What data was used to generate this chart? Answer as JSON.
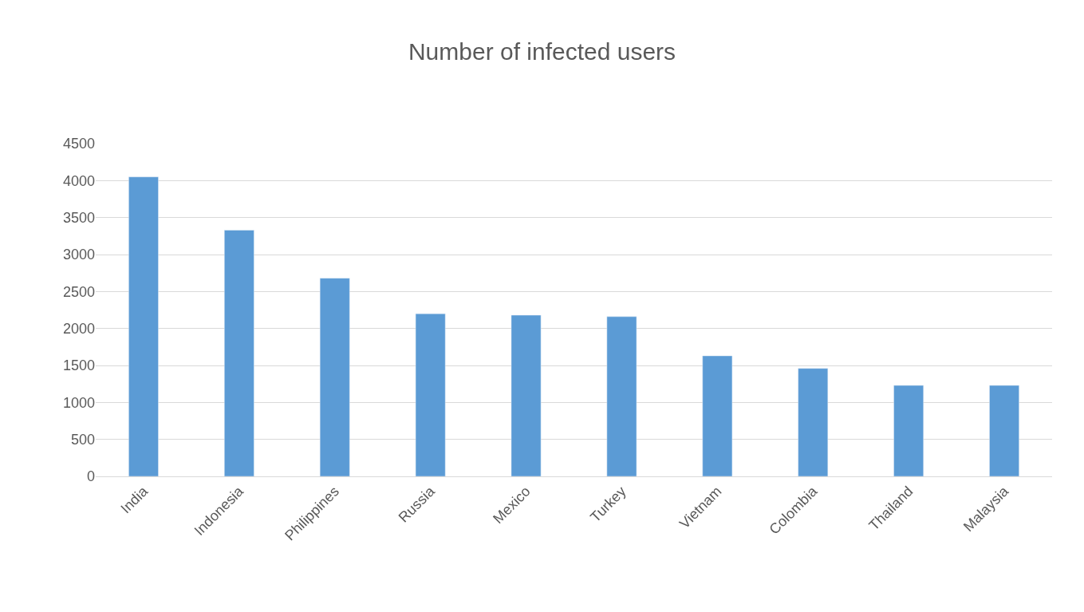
{
  "chart_data": {
    "type": "bar",
    "title": "Number of infected users",
    "categories": [
      "India",
      "Indonesia",
      "Philippines",
      "Russia",
      "Mexico",
      "Turkey",
      "Vietnam",
      "Colombia",
      "Thailand",
      "Malaysia"
    ],
    "values": [
      4050,
      3330,
      2680,
      2200,
      2180,
      2160,
      1630,
      1460,
      1230,
      1230
    ],
    "color": "#5b9bd5",
    "ylim": [
      0,
      4500
    ],
    "yticks": [
      0,
      500,
      1000,
      1500,
      2000,
      2500,
      3000,
      3500,
      4000,
      4500
    ],
    "grid": "y"
  }
}
